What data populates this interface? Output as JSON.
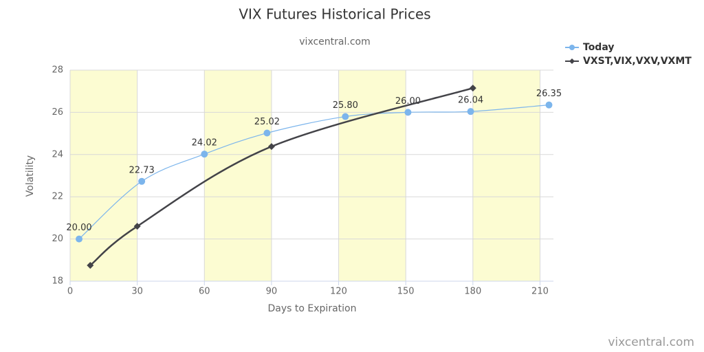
{
  "chart_data": {
    "type": "line",
    "title": "VIX Futures Historical Prices",
    "subtitle": "vixcentral.com",
    "watermark": "vixcentral.com",
    "x_label": "Days to Expiration",
    "y_label": "Volatility",
    "xlim": [
      0,
      216
    ],
    "ylim": [
      18,
      28
    ],
    "xticks": [
      0,
      30,
      60,
      90,
      120,
      150,
      180,
      210
    ],
    "yticks": [
      18,
      20,
      22,
      24,
      26,
      28
    ],
    "grid": true,
    "legend": "top-right",
    "shaded_bands": [
      [
        0,
        30
      ],
      [
        60,
        90
      ],
      [
        120,
        150
      ],
      [
        180,
        210
      ]
    ],
    "band_color": "#fcfcd2",
    "series": [
      {
        "name": "Today",
        "color": "#7cb5ec",
        "marker": "circle",
        "x": [
          4,
          32,
          60,
          88,
          123,
          151,
          179,
          214
        ],
        "values": [
          20.0,
          22.73,
          24.02,
          25.02,
          25.8,
          26.0,
          26.04,
          26.35
        ],
        "value_labels": [
          "20.00",
          "22.73",
          "24.02",
          "25.02",
          "25.80",
          "26.00",
          "26.04",
          "26.35"
        ]
      },
      {
        "name": "VXST,VIX,VXV,VXMT",
        "color": "#434348",
        "marker": "diamond",
        "x": [
          9,
          30,
          90,
          180
        ],
        "values": [
          18.75,
          20.6,
          24.38,
          27.15
        ]
      }
    ]
  }
}
